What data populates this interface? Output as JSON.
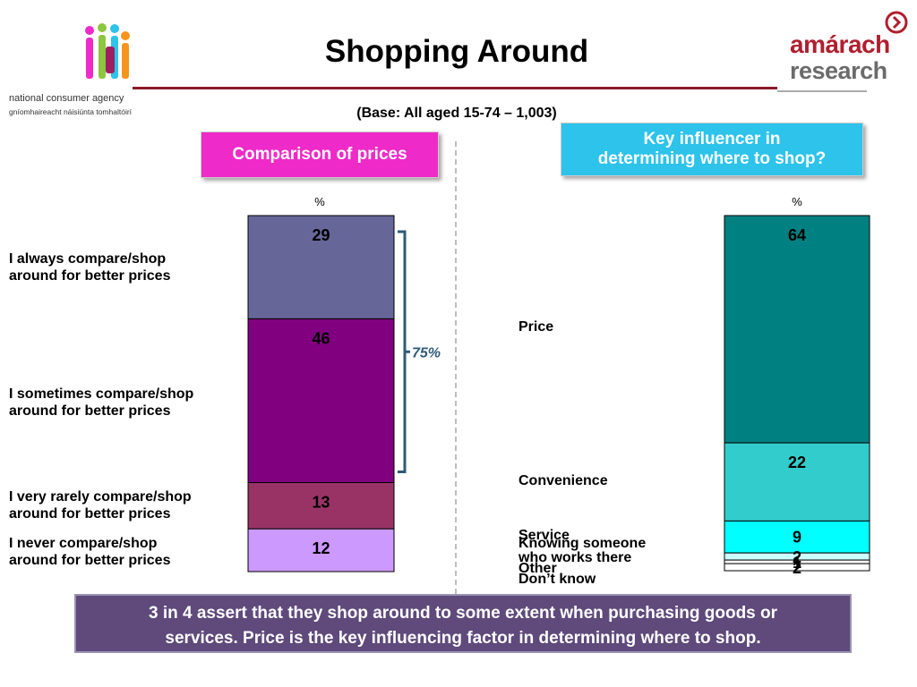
{
  "header": {
    "title": "Shopping Around",
    "base_note": "(Base:  All aged 15-74 – 1,003)"
  },
  "logos": {
    "nca_line1": "national consumer agency",
    "nca_line2": "gníomhaireacht náisiúnta tomhaltóirí",
    "amarach_line1": "amárach",
    "amarach_line2": "research",
    "colors": {
      "amarach_red": "#b01f2e",
      "amarach_grey": "#6b6b6b"
    }
  },
  "panels": {
    "left_heading": "Comparison of prices",
    "right_heading_line1": "Key influencer in",
    "right_heading_line2": "determining where to shop?"
  },
  "chart_data": [
    {
      "type": "bar",
      "stacked": true,
      "unit_label": "%",
      "segments": [
        {
          "label_line1": "I always compare/shop",
          "label_line2": "around for better prices",
          "value": 29,
          "color": "#666699"
        },
        {
          "label_line1": "I sometimes compare/shop",
          "label_line2": "around for better prices",
          "value": 46,
          "color": "#800080"
        },
        {
          "label_line1": "I very rarely compare/shop",
          "label_line2": "around for better prices",
          "value": 13,
          "color": "#993366"
        },
        {
          "label_line1": "I never compare/shop",
          "label_line2": "around for better prices",
          "value": 12,
          "color": "#cc99ff"
        }
      ],
      "annotation": "75%",
      "annotation_color": "#2e5a7a"
    },
    {
      "type": "bar",
      "stacked": true,
      "unit_label": "%",
      "segments": [
        {
          "label": "Price",
          "value": 64,
          "color": "#008080"
        },
        {
          "label": "Convenience",
          "value": 22,
          "color": "#33cccc"
        },
        {
          "label": "Service",
          "value": 9,
          "color": "#00ffff"
        },
        {
          "label": "Knowing someone\nwho works there",
          "value": 2,
          "color": "#ccffff"
        },
        {
          "label": "Other",
          "value": 1,
          "color": "#ffffff"
        },
        {
          "label": "Don’t know",
          "value": 2,
          "color": "#ffffff"
        }
      ]
    }
  ],
  "summary": {
    "line1": "3 in 4 assert that they shop around to some extent when purchasing goods or",
    "line2": "services.  Price is the key influencing factor in determining where to shop."
  }
}
